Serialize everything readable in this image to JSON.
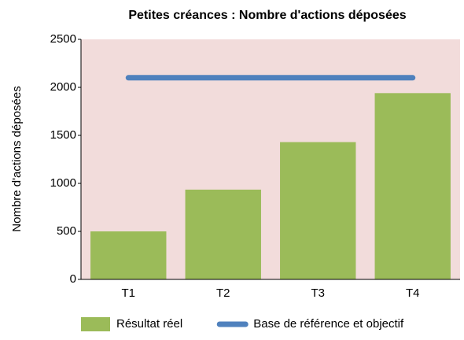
{
  "chart_data": {
    "type": "bar",
    "title": "Petites créances : Nombre d'actions déposées",
    "y_label": "Nombre d'actions déposées",
    "categories": [
      "T1",
      "T2",
      "T3",
      "T4"
    ],
    "series": [
      {
        "name": "Résultat réel",
        "type": "bar",
        "color": "#9bbb59",
        "values": [
          500,
          935,
          1430,
          1940
        ]
      },
      {
        "name": "Base de référence et objectif",
        "type": "line",
        "color": "#4f81bd",
        "values": [
          2100,
          2100,
          2100,
          2100
        ]
      }
    ],
    "ylim": [
      0,
      2500
    ],
    "yticks": [
      0,
      500,
      1000,
      1500,
      2000,
      2500
    ],
    "plot_background": "#f2dcdb",
    "legend": "bottom"
  }
}
